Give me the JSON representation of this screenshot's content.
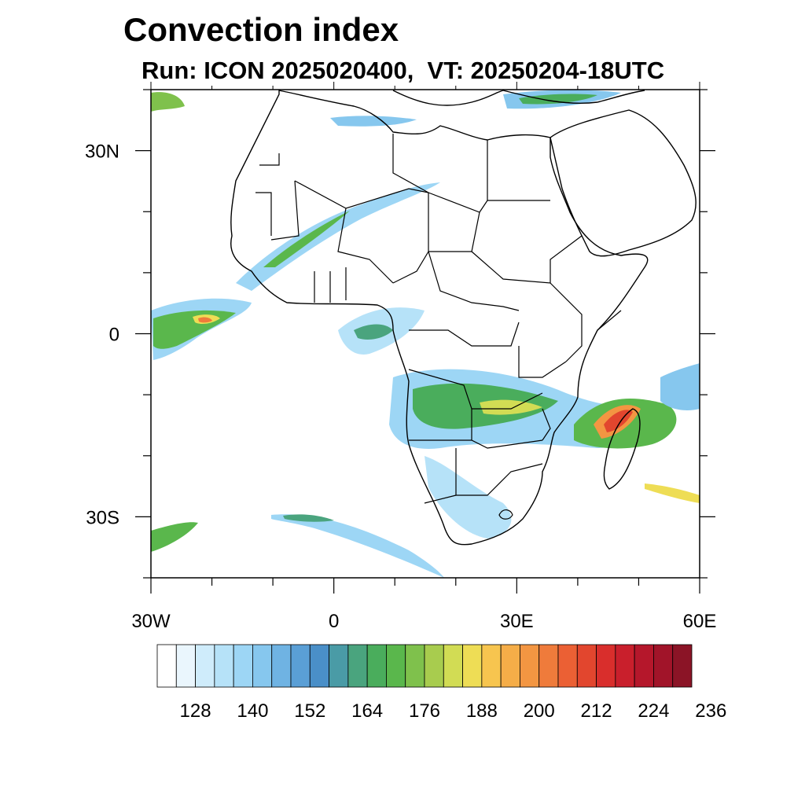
{
  "title": "Convection index",
  "subtitle": "Run: ICON 2025020400,  VT: 20250204-18UTC",
  "map": {
    "lon_range": [
      -30,
      60
    ],
    "lat_range": [
      -40,
      40
    ],
    "lat_ticks": [
      {
        "value": 30,
        "label": "30N"
      },
      {
        "value": 0,
        "label": "0"
      },
      {
        "value": -30,
        "label": "30S"
      }
    ],
    "lon_ticks": [
      {
        "value": -30,
        "label": "30W"
      },
      {
        "value": 0,
        "label": "0"
      },
      {
        "value": 30,
        "label": "30E"
      },
      {
        "value": 60,
        "label": "60E"
      }
    ]
  },
  "colorbar": {
    "colors": [
      "#ffffff",
      "#eaf6fd",
      "#cfecfb",
      "#b6e2f8",
      "#9dd6f5",
      "#86c7ee",
      "#6fb3e3",
      "#5a9fd6",
      "#4a8fc8",
      "#4a9ba6",
      "#4aa47e",
      "#4aad5c",
      "#5ab74c",
      "#7fc14c",
      "#a8cc4e",
      "#d2dc54",
      "#eedd55",
      "#f7c54f",
      "#f5ad48",
      "#f39642",
      "#ef7b3b",
      "#eb6034",
      "#e2462e",
      "#d92e2c",
      "#c91f2c",
      "#b5172b",
      "#a11429",
      "#8b1426"
    ],
    "labels": [
      "128",
      "140",
      "152",
      "164",
      "176",
      "188",
      "200",
      "212",
      "224",
      "236"
    ]
  }
}
